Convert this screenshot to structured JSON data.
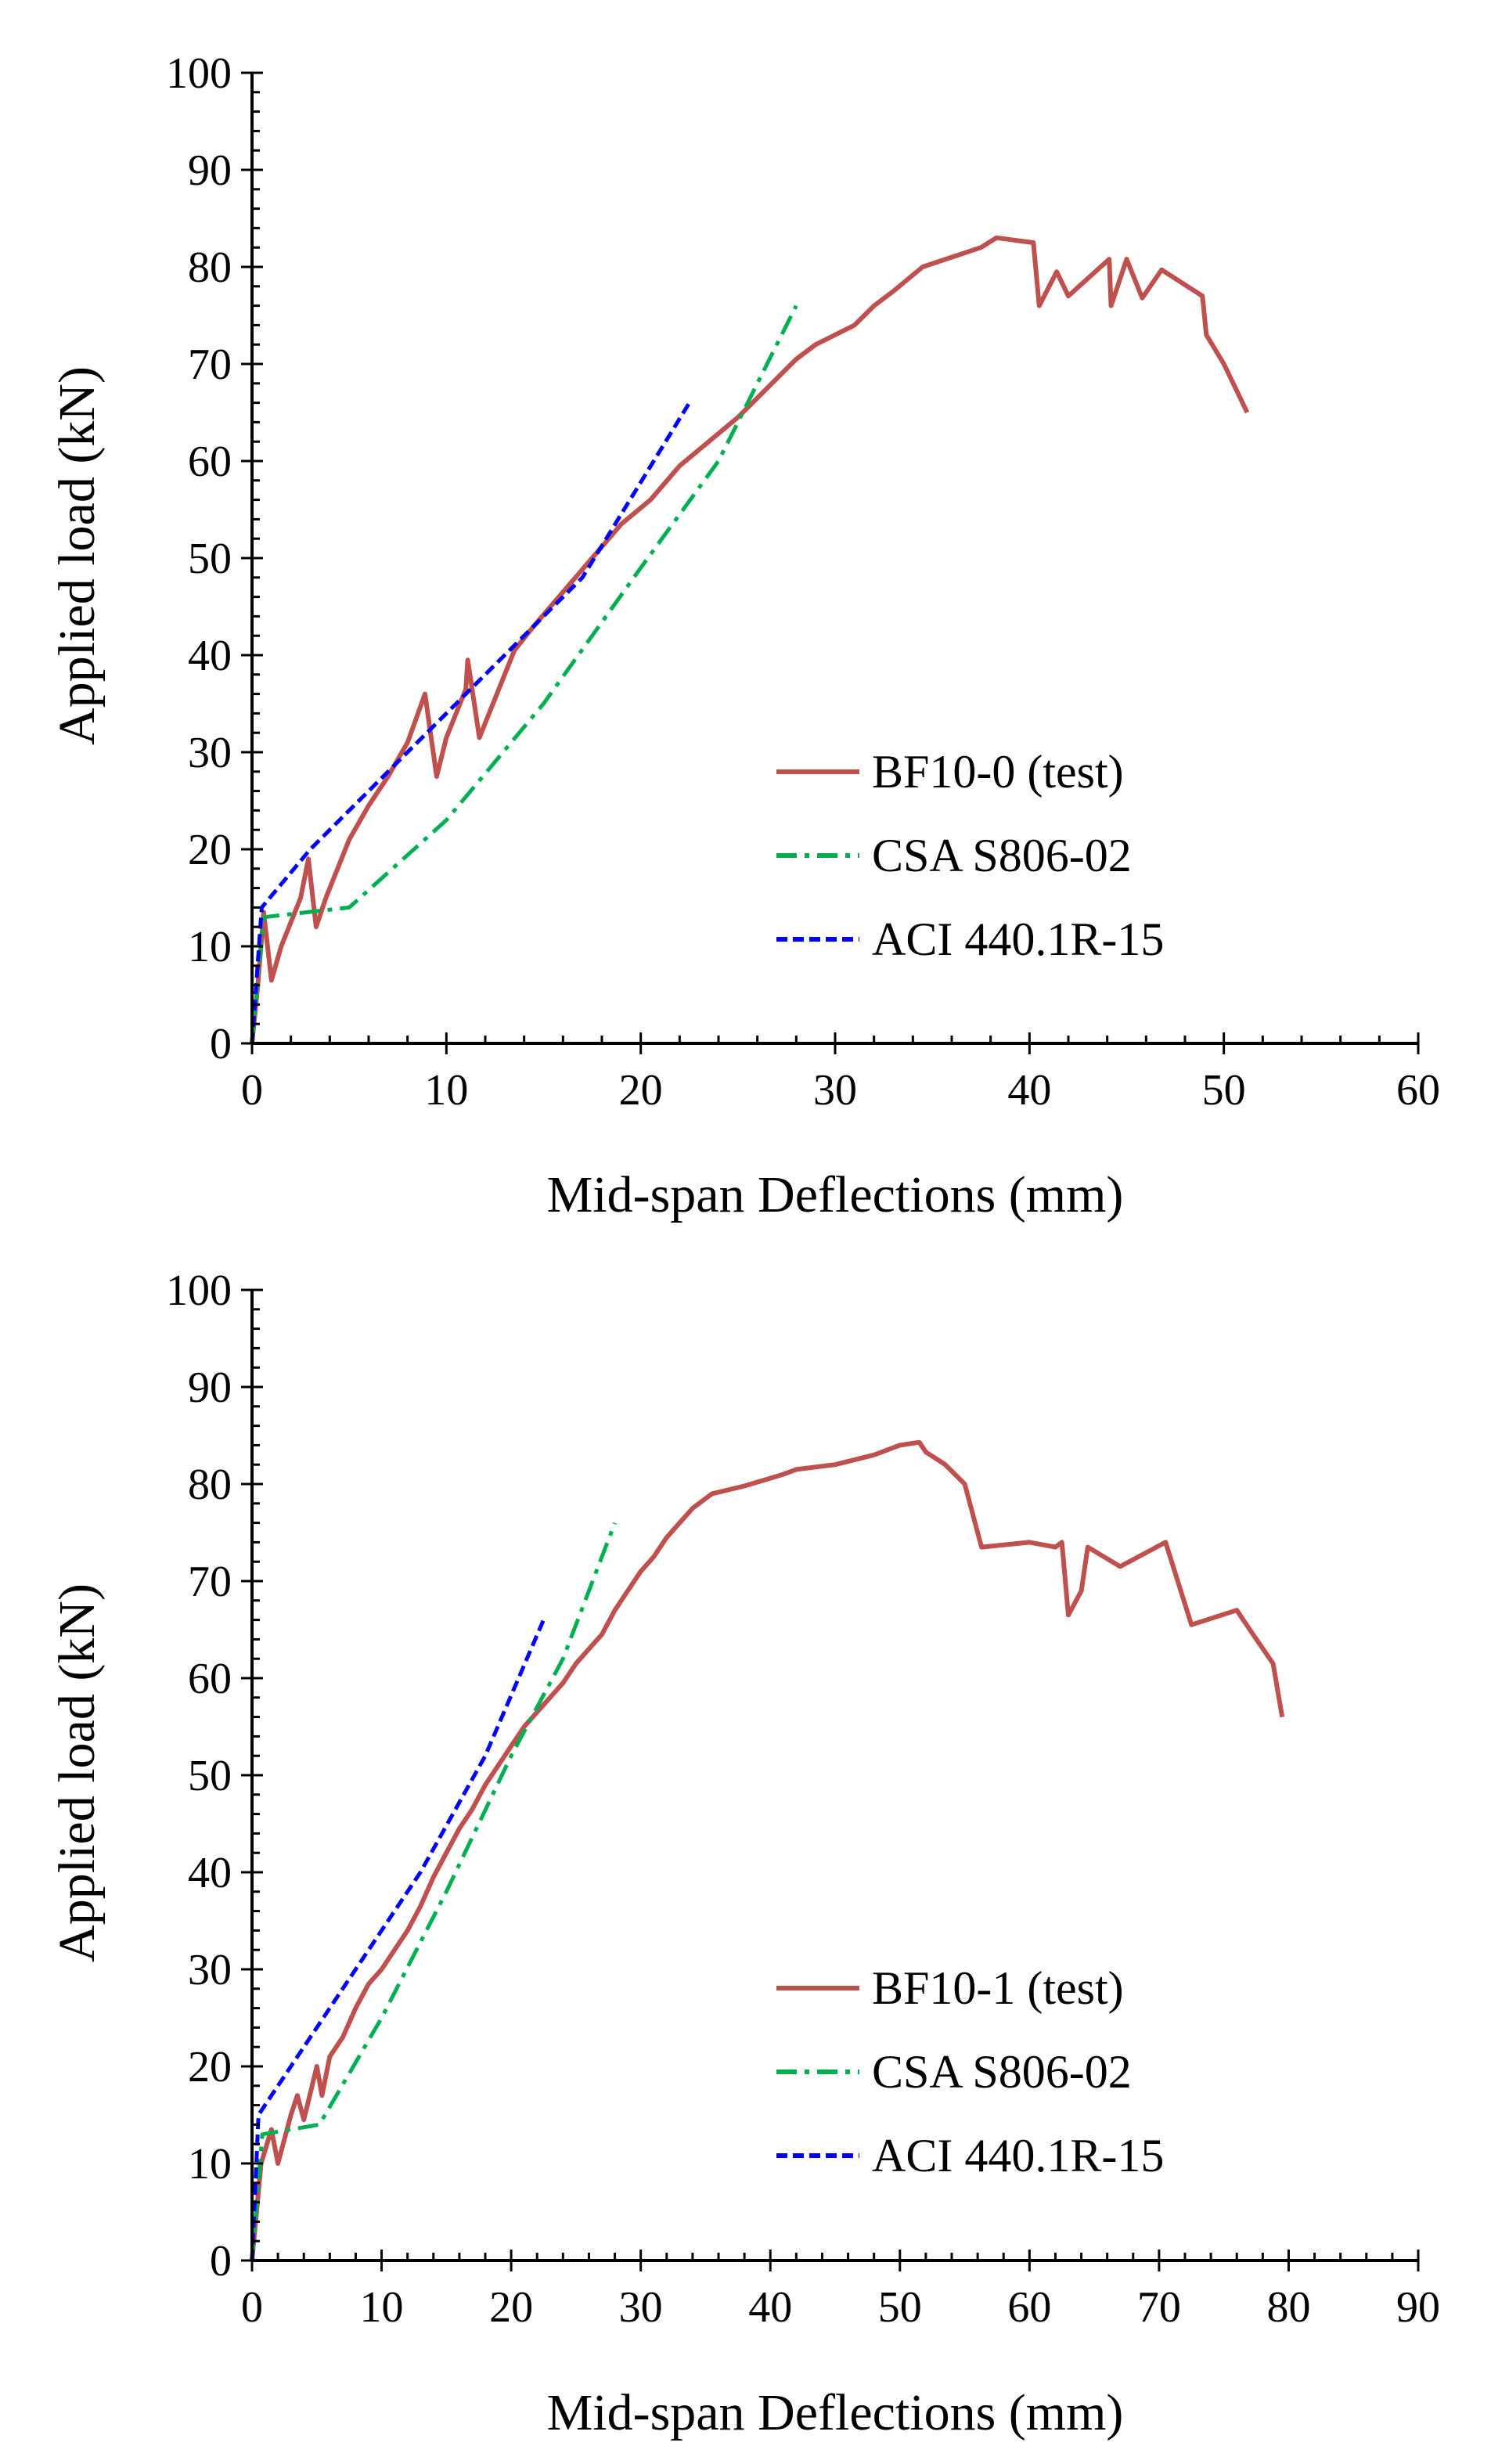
{
  "colors": {
    "test": "#c0504d",
    "csa": "#00b050",
    "aci": "#0000ff"
  },
  "chart_data": [
    {
      "type": "line",
      "xlabel": "Mid-span Deflections (mm)",
      "ylabel": "Applied load (kN)",
      "xlim": [
        0,
        60
      ],
      "ylim": [
        0,
        100
      ],
      "x_major_step": 10,
      "x_minor_step": 2,
      "y_major_step": 10,
      "y_minor_step": 2,
      "legend_position": "bottom-right",
      "series": [
        {
          "name": "BF10-0 (test)",
          "style": "solid",
          "color_key": "test",
          "points": [
            [
              0,
              0
            ],
            [
              0.3,
              6
            ],
            [
              0.6,
              13.5
            ],
            [
              1.0,
              6.5
            ],
            [
              1.5,
              10
            ],
            [
              2.5,
              15
            ],
            [
              2.9,
              19
            ],
            [
              3.3,
              12
            ],
            [
              3.8,
              15
            ],
            [
              4.5,
              18.5
            ],
            [
              5.0,
              21
            ],
            [
              6.0,
              24.5
            ],
            [
              7.0,
              27.5
            ],
            [
              8.0,
              31
            ],
            [
              8.9,
              36
            ],
            [
              9.5,
              27.5
            ],
            [
              10.0,
              31.5
            ],
            [
              11.0,
              36.5
            ],
            [
              11.1,
              39.5
            ],
            [
              11.7,
              31.5
            ],
            [
              12.5,
              35.5
            ],
            [
              13.5,
              40.5
            ],
            [
              14.5,
              43
            ],
            [
              16.0,
              46.5
            ],
            [
              17.5,
              50
            ],
            [
              19.0,
              53.5
            ],
            [
              20.5,
              56
            ],
            [
              22.0,
              59.5
            ],
            [
              23.5,
              62
            ],
            [
              25.0,
              64.5
            ],
            [
              26.5,
              67.5
            ],
            [
              28.0,
              70.5
            ],
            [
              29.0,
              72
            ],
            [
              30.0,
              73
            ],
            [
              31.0,
              74
            ],
            [
              32.0,
              76
            ],
            [
              33.0,
              77.5
            ],
            [
              34.5,
              80
            ],
            [
              36.0,
              81
            ],
            [
              37.5,
              82
            ],
            [
              38.3,
              83
            ],
            [
              40.2,
              82.5
            ],
            [
              40.5,
              76
            ],
            [
              41.4,
              79.5
            ],
            [
              42.0,
              77
            ],
            [
              44.1,
              80.8
            ],
            [
              44.2,
              76
            ],
            [
              45.0,
              80.8
            ],
            [
              45.8,
              76.8
            ],
            [
              46.8,
              79.7
            ],
            [
              48.9,
              77
            ],
            [
              49.1,
              73
            ],
            [
              50.0,
              70
            ],
            [
              51.2,
              65
            ]
          ]
        },
        {
          "name": "CSA S806-02",
          "style": "dashdot",
          "color_key": "csa",
          "points": [
            [
              0,
              0
            ],
            [
              0.6,
              13
            ],
            [
              5,
              14
            ],
            [
              10,
              23
            ],
            [
              15,
              35
            ],
            [
              20,
              49
            ],
            [
              24,
              60
            ],
            [
              28,
              76
            ]
          ]
        },
        {
          "name": "ACI 440.1R-15",
          "style": "dash",
          "color_key": "aci",
          "points": [
            [
              0,
              0
            ],
            [
              0.5,
              14
            ],
            [
              3,
              20
            ],
            [
              7,
              28
            ],
            [
              12,
              38
            ],
            [
              17,
              48
            ],
            [
              22.5,
              66
            ]
          ]
        }
      ]
    },
    {
      "type": "line",
      "xlabel": "Mid-span Deflections (mm)",
      "ylabel": "Applied load (kN)",
      "xlim": [
        0,
        90
      ],
      "ylim": [
        0,
        100
      ],
      "x_major_step": 10,
      "x_minor_step": 2,
      "y_major_step": 10,
      "y_minor_step": 2,
      "legend_position": "bottom-right",
      "series": [
        {
          "name": "BF10-1 (test)",
          "style": "solid",
          "color_key": "test",
          "points": [
            [
              0,
              0
            ],
            [
              0.7,
              10
            ],
            [
              1.5,
              13.5
            ],
            [
              2.0,
              10
            ],
            [
              3.0,
              15
            ],
            [
              3.5,
              17
            ],
            [
              4.0,
              14.5
            ],
            [
              5.0,
              20
            ],
            [
              5.4,
              17
            ],
            [
              6.0,
              21
            ],
            [
              7.0,
              23
            ],
            [
              8.0,
              26
            ],
            [
              9.0,
              28.5
            ],
            [
              10.0,
              30
            ],
            [
              11.0,
              32
            ],
            [
              12.0,
              34
            ],
            [
              13.0,
              36.5
            ],
            [
              14.0,
              39.5
            ],
            [
              15.0,
              42
            ],
            [
              16.0,
              44.5
            ],
            [
              17.0,
              46.5
            ],
            [
              18.0,
              49
            ],
            [
              19.0,
              51
            ],
            [
              20.0,
              53
            ],
            [
              21.0,
              55
            ],
            [
              22.0,
              56.5
            ],
            [
              23.0,
              58
            ],
            [
              24.0,
              59.5
            ],
            [
              25.0,
              61.5
            ],
            [
              26.0,
              63
            ],
            [
              27.0,
              64.5
            ],
            [
              28.0,
              67
            ],
            [
              29.0,
              69
            ],
            [
              30.0,
              71
            ],
            [
              31.0,
              72.5
            ],
            [
              32.0,
              74.5
            ],
            [
              33.0,
              76
            ],
            [
              34.0,
              77.5
            ],
            [
              35.5,
              79
            ],
            [
              38.0,
              79.8
            ],
            [
              41.0,
              81
            ],
            [
              42.0,
              81.5
            ],
            [
              45.0,
              82
            ],
            [
              48.0,
              83
            ],
            [
              50.0,
              84
            ],
            [
              51.5,
              84.3
            ],
            [
              52.0,
              83.3
            ],
            [
              53.5,
              82
            ],
            [
              55.0,
              80
            ],
            [
              56.3,
              73.5
            ],
            [
              60.0,
              74
            ],
            [
              62.0,
              73.5
            ],
            [
              62.5,
              74
            ],
            [
              63.0,
              66.5
            ],
            [
              64.0,
              69
            ],
            [
              64.5,
              73.5
            ],
            [
              67.0,
              71.5
            ],
            [
              70.5,
              74
            ],
            [
              72.5,
              65.5
            ],
            [
              76.0,
              67
            ],
            [
              77.0,
              65
            ],
            [
              78.8,
              61.5
            ],
            [
              79.5,
              56
            ]
          ]
        },
        {
          "name": "CSA S806-02",
          "style": "dashdot",
          "color_key": "csa",
          "points": [
            [
              0,
              0
            ],
            [
              0.8,
              13
            ],
            [
              5.2,
              14
            ],
            [
              10,
              25
            ],
            [
              15,
              38
            ],
            [
              20,
              52
            ],
            [
              24,
              62
            ],
            [
              28,
              76
            ]
          ]
        },
        {
          "name": "ACI 440.1R-15",
          "style": "dash",
          "color_key": "aci",
          "points": [
            [
              0,
              0
            ],
            [
              0.5,
              15
            ],
            [
              3,
              20
            ],
            [
              8,
              30
            ],
            [
              13,
              40
            ],
            [
              18,
              52
            ],
            [
              22.5,
              66
            ]
          ]
        }
      ]
    }
  ]
}
